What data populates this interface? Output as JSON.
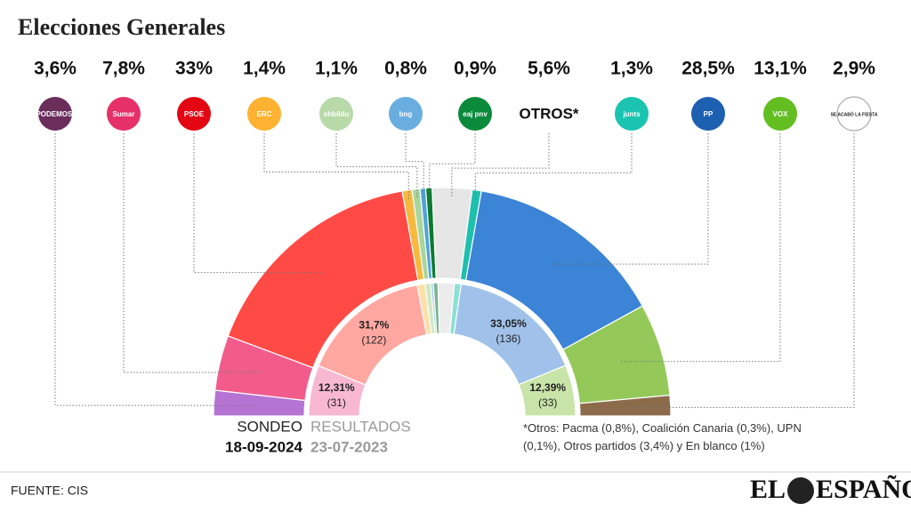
{
  "chart_data": {
    "type": "hemicycle",
    "title": "Elecciones Generales",
    "categories": [
      "PODEMOS.",
      "Sumar",
      "PSOE",
      "ERC",
      "ehbildu",
      "bng",
      "eaj pnv",
      "OTROS*",
      "junts",
      "PP",
      "VOX",
      "SE ACABÓ LA FIESTA"
    ],
    "logo_colors": [
      "#6b2d5c",
      "#e5306a",
      "#e30613",
      "#ffb232",
      "#b8d9a8",
      "#6aaee0",
      "#0b8a3c",
      null,
      "#1ac4b0",
      "#1d5fb0",
      "#63be21",
      "#ffffff"
    ],
    "series": [
      {
        "name": "SONDEO",
        "date": "18-09-2024",
        "colors": [
          "#b574d4",
          "#f15c8c",
          "#ff4a45",
          "#f6b940",
          "#a8d69c",
          "#4fa3d8",
          "#0a7a30",
          "#e6e6e6",
          "#1ebfae",
          "#3b84d6",
          "#94c95a",
          "#8b6b4a"
        ],
        "values": [
          3.6,
          7.8,
          33,
          1.4,
          1.1,
          0.8,
          0.9,
          5.6,
          1.3,
          28.5,
          13.1,
          2.9
        ],
        "value_labels": [
          "3,6%",
          "7,8%",
          "33%",
          "1,4%",
          "1,1%",
          "0,8%",
          "0,9%",
          "5,6%",
          "1,3%",
          "28,5%",
          "13,1%",
          "2,9%"
        ]
      },
      {
        "name": "RESULTADOS",
        "date": "23-07-2023",
        "colors": [
          "#d9b8ea",
          "#f8b8d2",
          "#ffa8a1",
          "#fbe0a8",
          "#cfe8c3",
          "#9fd0ef",
          "#7cb58f",
          "#ececec",
          "#8ce0d5",
          "#a0c2ea",
          "#c9e4a9",
          "#c9b8a6"
        ],
        "values": [
          null,
          12.31,
          31.7,
          1.89,
          1.36,
          0.62,
          1.12,
          3.96,
          1.6,
          33.05,
          12.39,
          null
        ],
        "value_labels": [
          null,
          "12,31%",
          "31,7%",
          null,
          null,
          null,
          null,
          null,
          null,
          "33,05%",
          "12,39%",
          null
        ],
        "seat_labels": [
          null,
          "(31)",
          "(122)",
          null,
          null,
          null,
          null,
          null,
          null,
          "(136)",
          "(33)",
          null
        ]
      }
    ],
    "note": "*Otros: Pacma (0,8%), Coalición Canaria (0,3%), UPN (0,1%), Otros partidos (3,4%) y En blanco (1%)"
  },
  "source": "FUENTE: CIS",
  "brand": [
    "EL",
    "ESPAÑOL"
  ]
}
